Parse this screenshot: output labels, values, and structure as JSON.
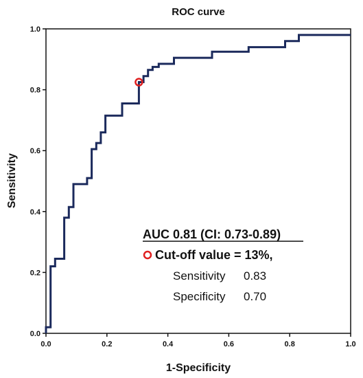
{
  "chart_data": {
    "type": "line",
    "title": "ROC curve",
    "xlabel": "1-Specificity",
    "ylabel": "Sensitivity",
    "xlim": [
      0.0,
      1.0
    ],
    "ylim": [
      0.0,
      1.0
    ],
    "grid": false,
    "x_ticks": [
      "0.0",
      "0.2",
      "0.4",
      "0.6",
      "0.8",
      "1.0"
    ],
    "y_ticks": [
      "0.0",
      "0.2",
      "0.4",
      "0.6",
      "0.8",
      "1.0"
    ],
    "line_color": "#1b2a5c",
    "marker_color": "#e02020",
    "series": [
      {
        "points": [
          [
            0.0,
            0.0
          ],
          [
            0.0,
            0.02
          ],
          [
            0.015,
            0.02
          ],
          [
            0.015,
            0.22
          ],
          [
            0.03,
            0.22
          ],
          [
            0.03,
            0.245
          ],
          [
            0.06,
            0.245
          ],
          [
            0.06,
            0.38
          ],
          [
            0.075,
            0.38
          ],
          [
            0.075,
            0.415
          ],
          [
            0.09,
            0.415
          ],
          [
            0.09,
            0.49
          ],
          [
            0.135,
            0.49
          ],
          [
            0.135,
            0.51
          ],
          [
            0.15,
            0.51
          ],
          [
            0.15,
            0.605
          ],
          [
            0.165,
            0.605
          ],
          [
            0.165,
            0.625
          ],
          [
            0.18,
            0.625
          ],
          [
            0.18,
            0.66
          ],
          [
            0.195,
            0.66
          ],
          [
            0.195,
            0.715
          ],
          [
            0.25,
            0.715
          ],
          [
            0.25,
            0.755
          ],
          [
            0.28,
            0.755
          ],
          [
            0.28,
            0.755
          ],
          [
            0.305,
            0.755
          ],
          [
            0.305,
            0.825
          ],
          [
            0.32,
            0.825
          ],
          [
            0.32,
            0.845
          ],
          [
            0.335,
            0.845
          ],
          [
            0.335,
            0.865
          ],
          [
            0.35,
            0.865
          ],
          [
            0.35,
            0.875
          ],
          [
            0.37,
            0.875
          ],
          [
            0.37,
            0.885
          ],
          [
            0.42,
            0.885
          ],
          [
            0.42,
            0.905
          ],
          [
            0.545,
            0.905
          ],
          [
            0.545,
            0.925
          ],
          [
            0.665,
            0.925
          ],
          [
            0.665,
            0.94
          ],
          [
            0.785,
            0.94
          ],
          [
            0.785,
            0.96
          ],
          [
            0.83,
            0.96
          ],
          [
            0.83,
            0.98
          ],
          [
            1.0,
            0.98
          ]
        ]
      }
    ],
    "cutoff_point": {
      "x": 0.305,
      "y": 0.825
    },
    "annotation": {
      "auc": "AUC 0.81 (CI: 0.73-0.89)",
      "cutoff": "Cut-off value = 13%,",
      "sensitivity_label": "Sensitivity",
      "sensitivity_value": "0.83",
      "specificity_label": "Specificity",
      "specificity_value": "0.70"
    }
  }
}
